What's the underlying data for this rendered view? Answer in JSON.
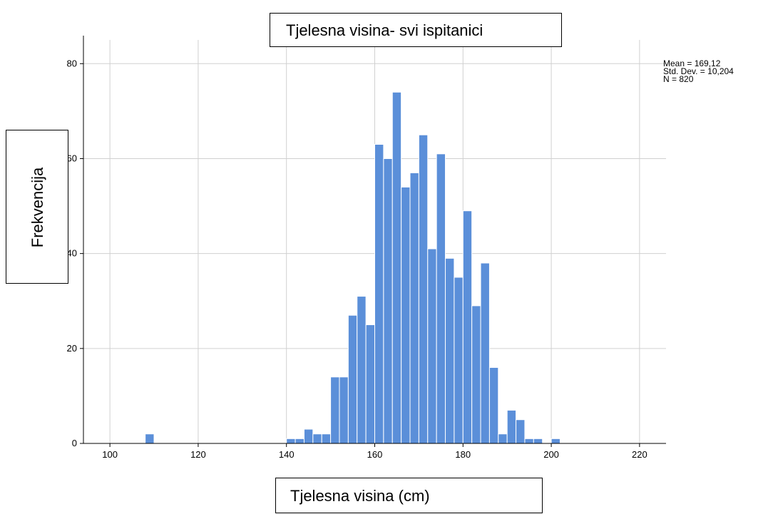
{
  "chart_data": {
    "type": "bar",
    "title": "Tjelesna visina- svi ispitanici",
    "xlabel": "Tjelesna visina (cm)",
    "ylabel": "Frekvencija",
    "xlim": [
      94,
      226
    ],
    "ylim": [
      0,
      85
    ],
    "x_ticks": [
      100,
      120,
      140,
      160,
      180,
      200,
      220
    ],
    "y_ticks": [
      0,
      20,
      40,
      60,
      80
    ],
    "grid": true,
    "bar_color": "#5b8fd9",
    "bin_width": 2,
    "bins": [
      {
        "x": 109,
        "value": 2
      },
      {
        "x": 141,
        "value": 1
      },
      {
        "x": 143,
        "value": 1
      },
      {
        "x": 145,
        "value": 3
      },
      {
        "x": 147,
        "value": 2
      },
      {
        "x": 149,
        "value": 2
      },
      {
        "x": 151,
        "value": 14
      },
      {
        "x": 153,
        "value": 14
      },
      {
        "x": 155,
        "value": 27
      },
      {
        "x": 157,
        "value": 31
      },
      {
        "x": 159,
        "value": 25
      },
      {
        "x": 161,
        "value": 63
      },
      {
        "x": 163,
        "value": 60
      },
      {
        "x": 165,
        "value": 74
      },
      {
        "x": 167,
        "value": 54
      },
      {
        "x": 169,
        "value": 57
      },
      {
        "x": 171,
        "value": 65
      },
      {
        "x": 173,
        "value": 41
      },
      {
        "x": 175,
        "value": 61
      },
      {
        "x": 177,
        "value": 39
      },
      {
        "x": 179,
        "value": 35
      },
      {
        "x": 181,
        "value": 49
      },
      {
        "x": 183,
        "value": 29
      },
      {
        "x": 185,
        "value": 38
      },
      {
        "x": 187,
        "value": 16
      },
      {
        "x": 189,
        "value": 2
      },
      {
        "x": 191,
        "value": 7
      },
      {
        "x": 193,
        "value": 5
      },
      {
        "x": 195,
        "value": 1
      },
      {
        "x": 197,
        "value": 1
      },
      {
        "x": 201,
        "value": 1
      }
    ],
    "stats": {
      "mean": "Mean = 169,12",
      "std_dev": "Std. Dev. = 10,204",
      "n": "N = 820"
    }
  }
}
